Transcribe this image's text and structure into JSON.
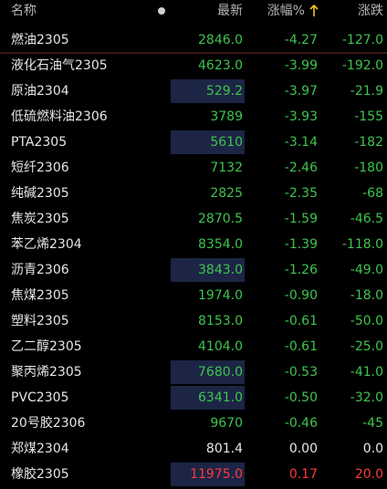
{
  "header": {
    "name": "名称",
    "price": "最新",
    "pct": "涨幅%",
    "change": "涨跌"
  },
  "rows": [
    {
      "name": "燃油2305",
      "price": "2846.0",
      "pct": "-4.27",
      "change": "-127.0",
      "highlight": false
    },
    {
      "name": "液化石油气2305",
      "price": "4623.0",
      "pct": "-3.99",
      "change": "-192.0",
      "highlight": false
    },
    {
      "name": "原油2304",
      "price": "529.2",
      "pct": "-3.97",
      "change": "-21.9",
      "highlight": true
    },
    {
      "name": "低硫燃料油2306",
      "price": "3789",
      "pct": "-3.93",
      "change": "-155",
      "highlight": false
    },
    {
      "name": "PTA2305",
      "price": "5610",
      "pct": "-3.14",
      "change": "-182",
      "highlight": true
    },
    {
      "name": "短纤2306",
      "price": "7132",
      "pct": "-2.46",
      "change": "-180",
      "highlight": false
    },
    {
      "name": "纯碱2305",
      "price": "2825",
      "pct": "-2.35",
      "change": "-68",
      "highlight": false
    },
    {
      "name": "焦炭2305",
      "price": "2870.5",
      "pct": "-1.59",
      "change": "-46.5",
      "highlight": false
    },
    {
      "name": "苯乙烯2304",
      "price": "8354.0",
      "pct": "-1.39",
      "change": "-118.0",
      "highlight": false
    },
    {
      "name": "沥青2306",
      "price": "3843.0",
      "pct": "-1.26",
      "change": "-49.0",
      "highlight": true
    },
    {
      "name": "焦煤2305",
      "price": "1974.0",
      "pct": "-0.90",
      "change": "-18.0",
      "highlight": false
    },
    {
      "name": "塑料2305",
      "price": "8153.0",
      "pct": "-0.61",
      "change": "-50.0",
      "highlight": false
    },
    {
      "name": "乙二醇2305",
      "price": "4104.0",
      "pct": "-0.61",
      "change": "-25.0",
      "highlight": false
    },
    {
      "name": "聚丙烯2305",
      "price": "7680.0",
      "pct": "-0.53",
      "change": "-41.0",
      "highlight": true
    },
    {
      "name": "PVC2305",
      "price": "6341.0",
      "pct": "-0.50",
      "change": "-32.0",
      "highlight": true
    },
    {
      "name": "20号胶2306",
      "price": "9670",
      "pct": "-0.46",
      "change": "-45",
      "highlight": false
    },
    {
      "name": "郑煤2304",
      "price": "801.4",
      "pct": "0.00",
      "change": "0.0",
      "highlight": false
    },
    {
      "name": "橡胶2305",
      "price": "11975.0",
      "pct": "0.17",
      "change": "20.0",
      "highlight": true
    }
  ]
}
